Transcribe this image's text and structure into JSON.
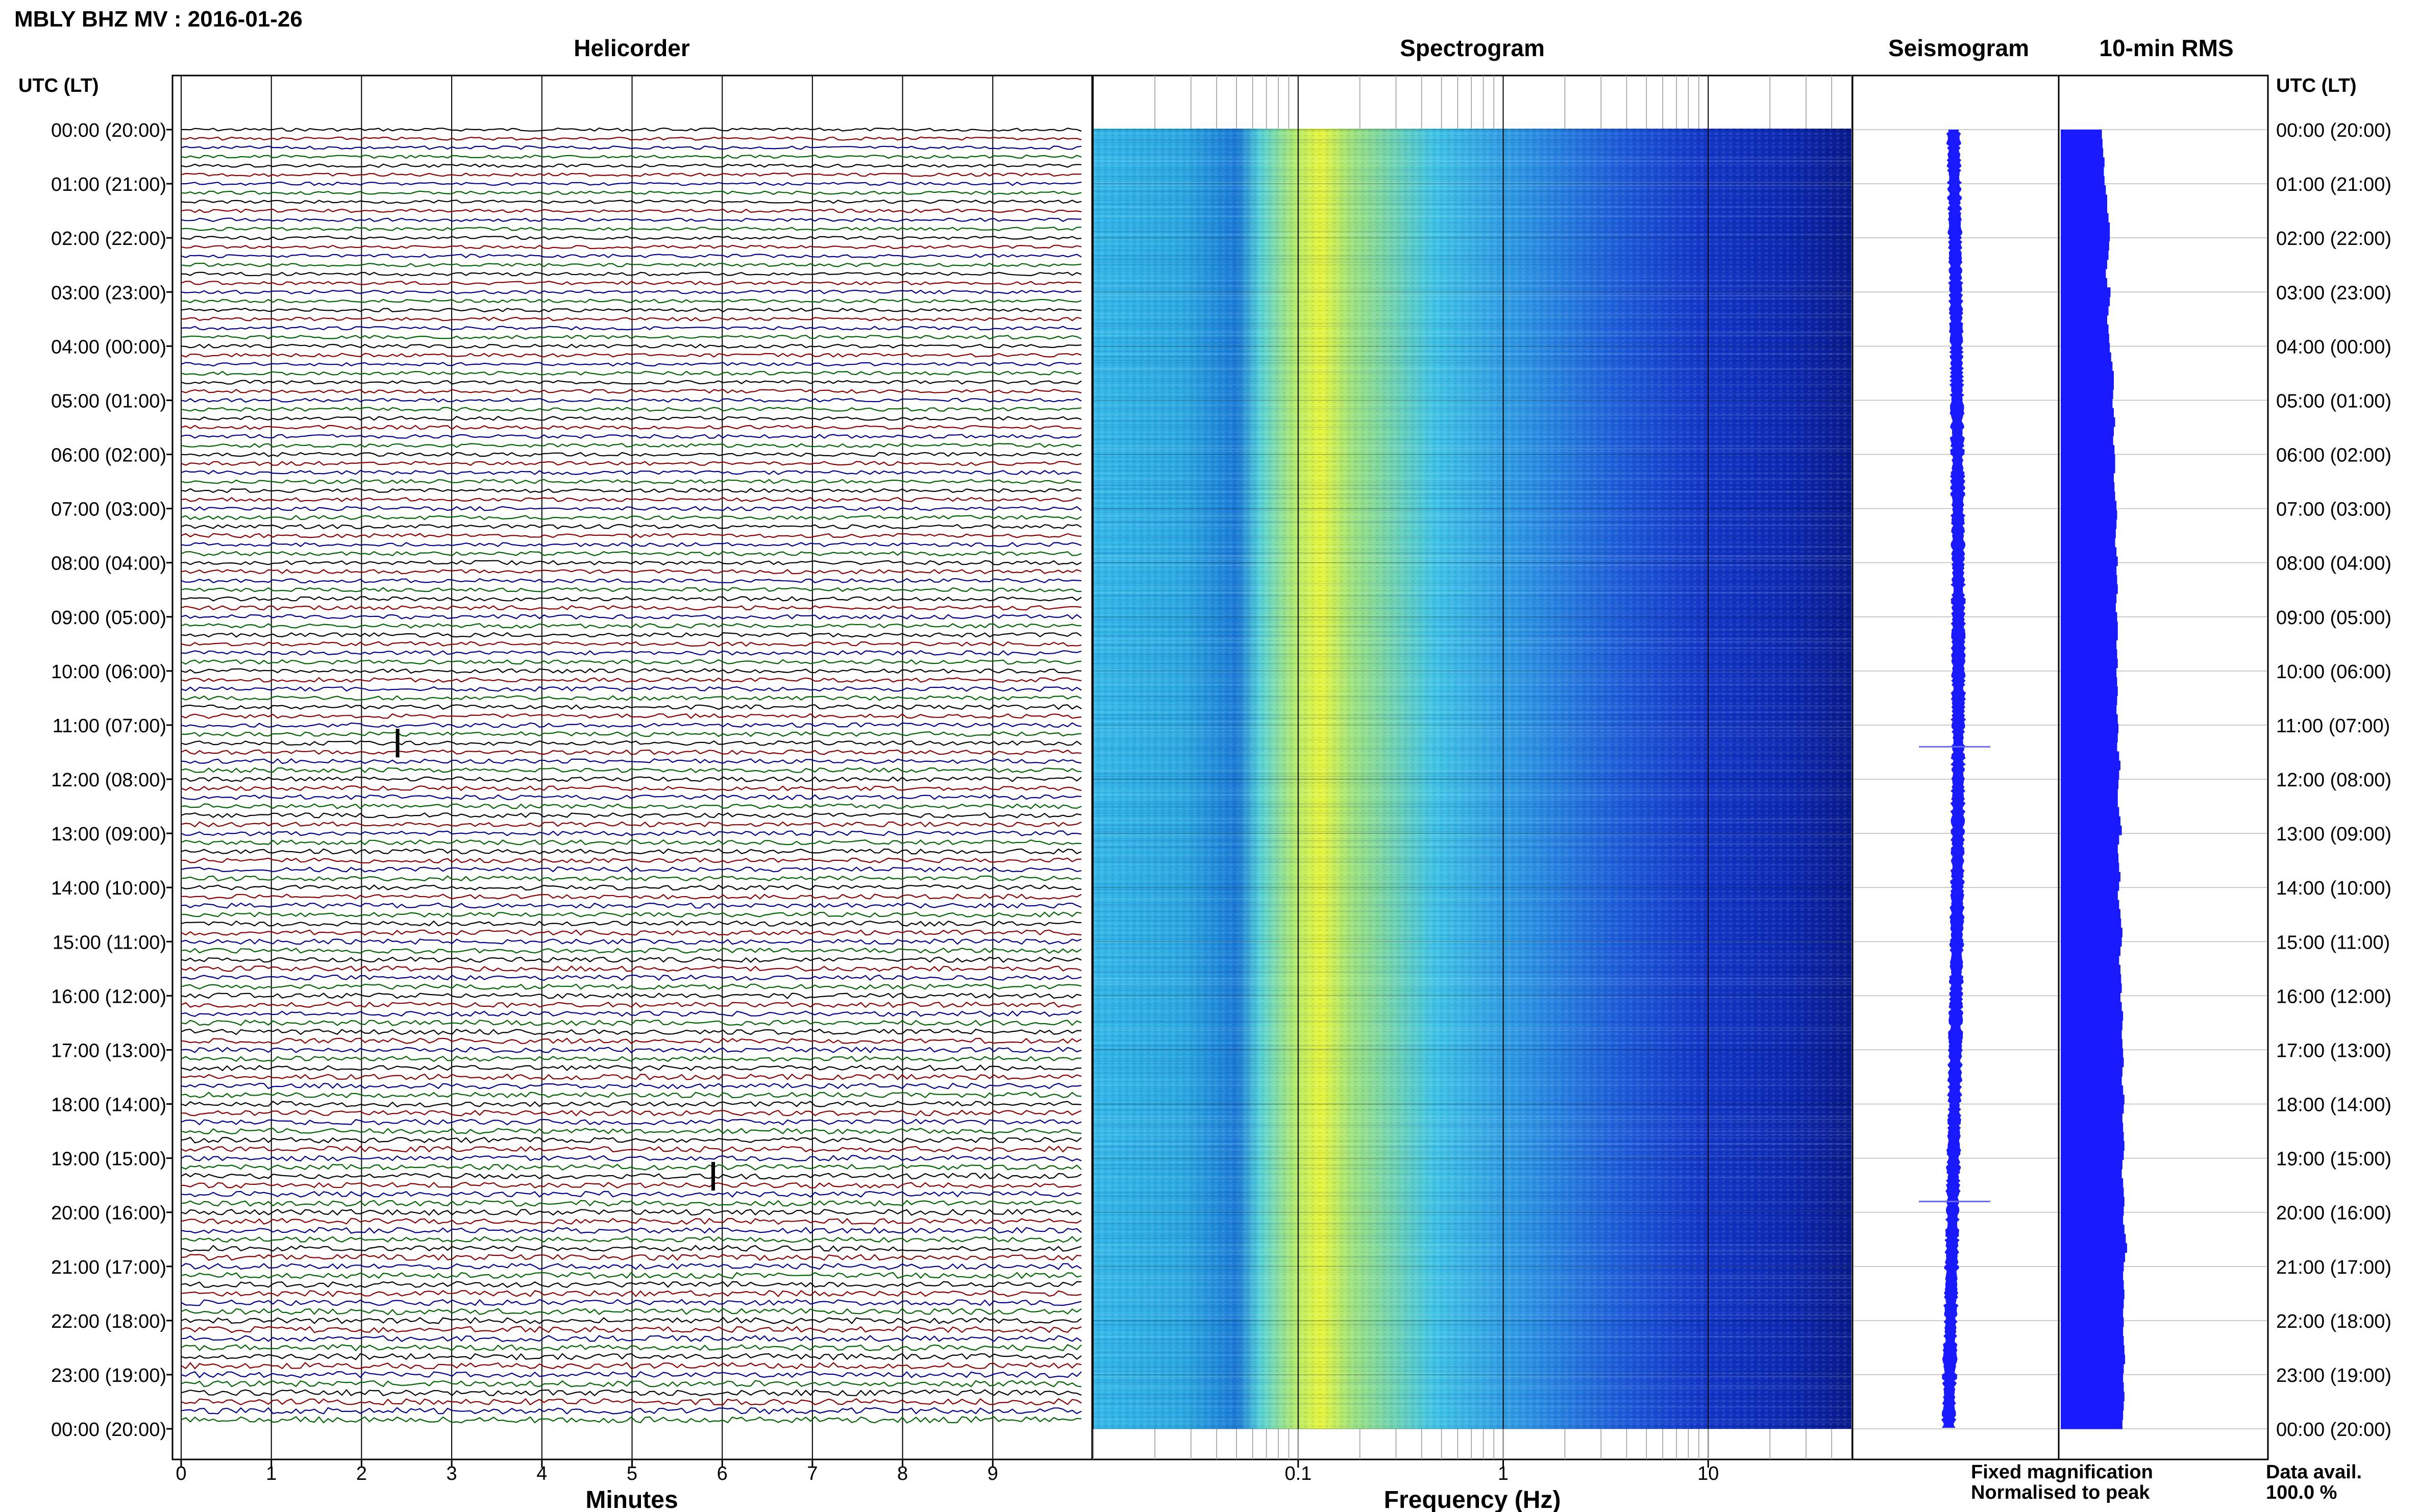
{
  "header": {
    "title": "MBLY BHZ MV : 2016-01-26"
  },
  "panels": {
    "helicorder_title": "Helicorder",
    "spectrogram_title": "Spectrogram",
    "seismogram_title": "Seismogram",
    "rms_title": "10-min RMS"
  },
  "axes": {
    "left_time_header": "UTC (LT)",
    "right_time_header": "UTC (LT)",
    "time_labels": [
      "00:00 (20:00)",
      "01:00 (21:00)",
      "02:00 (22:00)",
      "03:00 (23:00)",
      "04:00 (00:00)",
      "05:00 (01:00)",
      "06:00 (02:00)",
      "07:00 (03:00)",
      "08:00 (04:00)",
      "09:00 (05:00)",
      "10:00 (06:00)",
      "11:00 (07:00)",
      "12:00 (08:00)",
      "13:00 (09:00)",
      "14:00 (10:00)",
      "15:00 (11:00)",
      "16:00 (12:00)",
      "17:00 (13:00)",
      "18:00 (14:00)",
      "19:00 (15:00)",
      "20:00 (16:00)",
      "21:00 (17:00)",
      "22:00 (18:00)",
      "23:00 (19:00)",
      "00:00 (20:00)"
    ],
    "minutes_ticks": [
      "0",
      "1",
      "2",
      "3",
      "4",
      "5",
      "6",
      "7",
      "8",
      "9"
    ],
    "minutes_label": "Minutes",
    "freq_ticks": [
      "0.1",
      "1",
      "10"
    ],
    "freq_label": "Frequency (Hz)"
  },
  "legend": {
    "fixed": "Fixed magnification",
    "fixed_color": "#1a1aff",
    "normalised": "Normalised to peak",
    "normalised_color": "#ff1a1a"
  },
  "availability": {
    "label": "Data avail.",
    "value": "100.0 %"
  },
  "colors": {
    "trace_cycle": [
      "#000000",
      "#8b0000",
      "#00008b",
      "#006400"
    ],
    "seismogram": "#1a1aff",
    "rms": "#1a1aff"
  },
  "chart_data": [
    {
      "type": "helicorder",
      "x_unit": "minutes",
      "xlim": [
        0,
        10
      ],
      "lines_per_hour": 6,
      "hours": 24,
      "events": [
        {
          "hour": 11,
          "minute": 2.4,
          "label": ""
        },
        {
          "hour": 19,
          "minute": 5.9,
          "label": ""
        }
      ]
    },
    {
      "type": "heatmap",
      "x_unit": "Hz",
      "x_scale": "log",
      "xlim": [
        0.01,
        50
      ],
      "peak_frequency_hz": 0.25
    },
    {
      "type": "line",
      "x_unit": "hours",
      "xlim": [
        0,
        24
      ],
      "spikes_at_hours": [
        11.4,
        19.8
      ]
    },
    {
      "type": "bar",
      "x_unit": "hours",
      "xlim": [
        0,
        24
      ],
      "values": [
        0.62,
        0.63,
        0.64,
        0.66,
        0.65,
        0.66,
        0.68,
        0.7,
        0.7,
        0.72,
        0.74,
        0.74,
        0.73,
        0.72,
        0.7,
        0.68,
        0.7,
        0.75,
        0.74,
        0.72,
        0.7,
        0.72,
        0.73,
        0.74,
        0.76,
        0.78,
        0.8,
        0.8,
        0.79,
        0.78,
        0.8,
        0.82,
        0.8,
        0.79,
        0.81,
        0.82,
        0.82,
        0.8,
        0.81,
        0.82,
        0.84,
        0.85,
        0.84,
        0.83,
        0.82,
        0.84,
        0.86,
        0.84,
        0.85,
        0.86,
        0.84,
        0.83,
        0.85,
        0.86,
        0.86,
        0.84,
        0.85,
        0.86,
        0.84,
        0.85,
        0.86,
        0.85,
        0.84,
        0.86,
        0.87,
        0.86,
        0.85,
        0.88,
        0.9,
        0.88,
        0.87,
        0.86,
        0.86,
        0.88,
        0.9,
        0.92,
        0.88,
        0.86,
        0.87,
        0.88,
        0.9,
        0.88,
        0.86,
        0.88,
        0.9,
        0.91,
        0.93,
        0.92,
        0.9,
        0.88,
        0.9,
        0.91,
        0.92,
        0.9,
        0.92,
        0.94,
        0.93,
        0.92,
        0.93,
        0.94,
        0.95,
        0.93,
        0.92,
        0.94,
        0.96,
        0.95,
        0.93,
        0.94,
        0.95,
        0.96,
        0.95,
        0.93,
        0.92,
        0.94,
        0.95,
        0.96,
        0.95,
        0.94,
        0.96,
        0.98,
        1.0,
        0.97,
        0.95,
        0.94,
        0.95,
        0.96,
        0.95,
        0.94,
        0.95,
        0.94,
        0.95,
        0.96,
        0.97,
        0.95,
        0.94,
        0.95,
        0.96,
        0.95,
        0.94,
        0.93
      ]
    }
  ]
}
